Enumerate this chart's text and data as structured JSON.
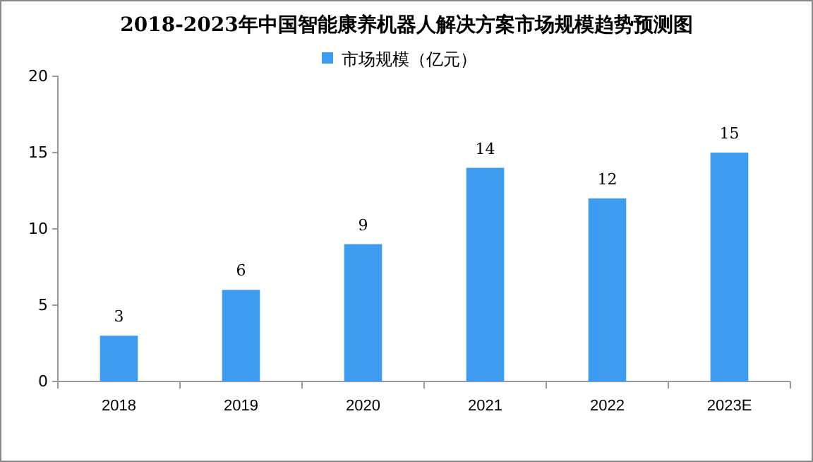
{
  "chart_data": {
    "type": "bar",
    "title": "2018-2023年中国智能康养机器人解决方案市场规模趋势预测图",
    "categories": [
      "2018",
      "2019",
      "2020",
      "2021",
      "2022",
      "2023E"
    ],
    "series": [
      {
        "name": "市场规模（亿元）",
        "color": "#3d9cf0",
        "values": [
          3,
          6,
          9,
          14,
          12,
          15
        ]
      }
    ],
    "ylim": [
      0,
      20
    ],
    "yticks": [
      0,
      5,
      10,
      15,
      20
    ],
    "grid": false,
    "legend": "top",
    "data_labels": true
  }
}
